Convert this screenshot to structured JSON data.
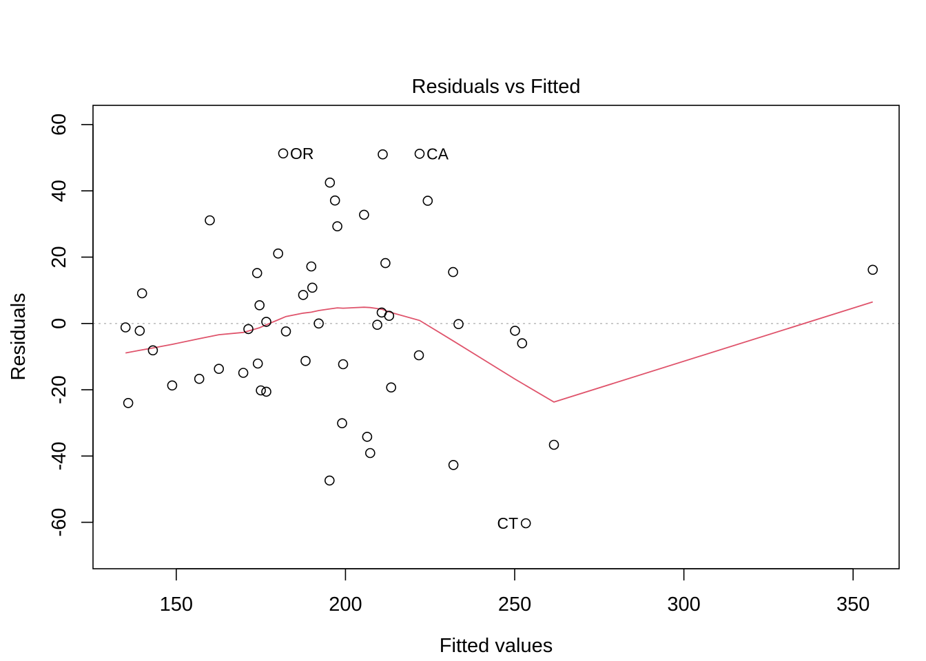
{
  "chart_data": {
    "type": "scatter",
    "title": "Residuals vs Fitted",
    "xlabel": "Fitted values",
    "ylabel": "Residuals",
    "xlim": [
      125.4,
      363.6
    ],
    "ylim": [
      -74.0,
      65.8
    ],
    "x_ticks": [
      150,
      200,
      250,
      300,
      350
    ],
    "x_tick_labels": [
      "150",
      "200",
      "250",
      "300",
      "350"
    ],
    "y_ticks": [
      -60,
      -40,
      -20,
      0,
      20,
      40,
      60
    ],
    "y_tick_labels": [
      "-60",
      "-40",
      "-20",
      "0",
      "20",
      "40",
      "60"
    ],
    "grid": false,
    "reference_line": {
      "y": 0,
      "color": "#bebebe",
      "style": "dotted"
    },
    "points": [
      {
        "x": 181.6,
        "y": 51.3,
        "label": "OR"
      },
      {
        "x": 211.0,
        "y": 51.0
      },
      {
        "x": 221.9,
        "y": 51.2,
        "label": "CA"
      },
      {
        "x": 195.4,
        "y": 42.5
      },
      {
        "x": 196.9,
        "y": 37.1
      },
      {
        "x": 224.3,
        "y": 37.0
      },
      {
        "x": 159.9,
        "y": 31.1
      },
      {
        "x": 205.5,
        "y": 32.8
      },
      {
        "x": 197.6,
        "y": 29.3
      },
      {
        "x": 180.1,
        "y": 21.1
      },
      {
        "x": 211.8,
        "y": 18.2
      },
      {
        "x": 189.9,
        "y": 17.2
      },
      {
        "x": 173.9,
        "y": 15.2
      },
      {
        "x": 231.8,
        "y": 15.5
      },
      {
        "x": 355.8,
        "y": 16.2
      },
      {
        "x": 190.2,
        "y": 10.8
      },
      {
        "x": 139.9,
        "y": 9.1
      },
      {
        "x": 187.5,
        "y": 8.6
      },
      {
        "x": 174.6,
        "y": 5.5
      },
      {
        "x": 210.7,
        "y": 3.3
      },
      {
        "x": 212.9,
        "y": 2.3
      },
      {
        "x": 176.6,
        "y": 0.5
      },
      {
        "x": 192.1,
        "y": 0.0
      },
      {
        "x": 209.4,
        "y": -0.4
      },
      {
        "x": 233.4,
        "y": -0.2
      },
      {
        "x": 135.0,
        "y": -1.2
      },
      {
        "x": 171.3,
        "y": -1.7
      },
      {
        "x": 139.2,
        "y": -2.2
      },
      {
        "x": 182.4,
        "y": -2.4
      },
      {
        "x": 250.1,
        "y": -2.2
      },
      {
        "x": 252.2,
        "y": -6.0
      },
      {
        "x": 143.1,
        "y": -8.1
      },
      {
        "x": 221.7,
        "y": -9.6
      },
      {
        "x": 188.2,
        "y": -11.3
      },
      {
        "x": 174.1,
        "y": -12.1
      },
      {
        "x": 199.3,
        "y": -12.3
      },
      {
        "x": 162.6,
        "y": -13.7
      },
      {
        "x": 169.8,
        "y": -14.9
      },
      {
        "x": 156.8,
        "y": -16.7
      },
      {
        "x": 148.8,
        "y": -18.7
      },
      {
        "x": 213.5,
        "y": -19.3
      },
      {
        "x": 175.0,
        "y": -20.2
      },
      {
        "x": 176.6,
        "y": -20.6
      },
      {
        "x": 135.8,
        "y": -24.0
      },
      {
        "x": 199.0,
        "y": -30.1
      },
      {
        "x": 206.4,
        "y": -34.2
      },
      {
        "x": 261.6,
        "y": -36.6
      },
      {
        "x": 207.3,
        "y": -39.1
      },
      {
        "x": 231.9,
        "y": -42.7
      },
      {
        "x": 195.3,
        "y": -47.4
      },
      {
        "x": 253.3,
        "y": -60.3,
        "label": "CT"
      }
    ],
    "smoother": {
      "color": "#df536b",
      "x": [
        135.0,
        139.2,
        143.1,
        148.8,
        156.8,
        162.6,
        169.8,
        171.3,
        174.6,
        176.6,
        180.1,
        182.4,
        187.5,
        189.9,
        192.1,
        195.4,
        197.6,
        199.3,
        205.5,
        207.3,
        209.4,
        211.0,
        213.5,
        221.9,
        231.9,
        250.1,
        261.6,
        355.8
      ],
      "y": [
        -8.9,
        -8.1,
        -7.4,
        -6.3,
        -4.6,
        -3.4,
        -2.7,
        -2.3,
        -1.3,
        -0.4,
        1.1,
        2.1,
        3.1,
        3.4,
        3.9,
        4.4,
        4.7,
        4.6,
        4.9,
        4.8,
        4.5,
        4.2,
        3.3,
        0.9,
        -5.3,
        -16.8,
        -23.7,
        6.5
      ]
    }
  }
}
